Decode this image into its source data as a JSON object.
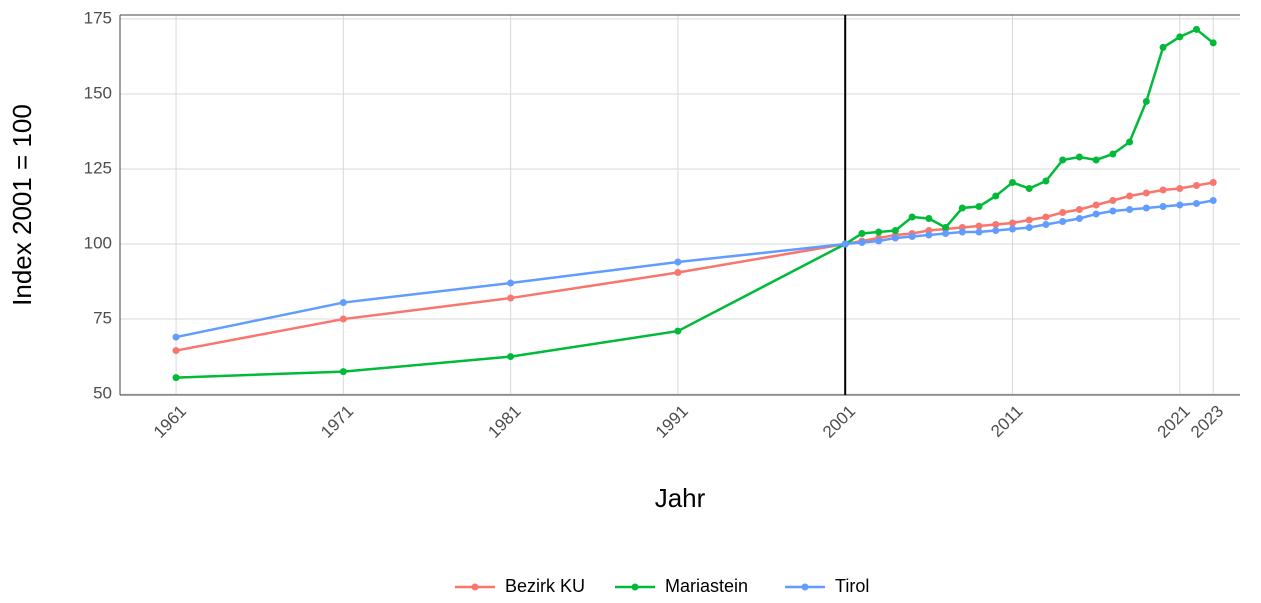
{
  "chart_data": {
    "type": "line",
    "x_label": "Jahr",
    "y_label": "Index 2001 = 100",
    "x": [
      1961,
      1971,
      1981,
      1991,
      2001,
      2002,
      2003,
      2004,
      2005,
      2006,
      2007,
      2008,
      2009,
      2010,
      2011,
      2012,
      2013,
      2014,
      2015,
      2016,
      2017,
      2018,
      2019,
      2020,
      2021,
      2022,
      2023
    ],
    "series": [
      {
        "name": "Bezirk KU",
        "color": "#F8766D",
        "values": [
          64.5,
          75,
          82,
          90.5,
          100,
          101,
          102,
          103,
          103.5,
          104.5,
          105,
          105.5,
          106,
          106.5,
          107,
          108,
          109,
          110.5,
          111.5,
          113,
          114.5,
          116,
          117,
          118,
          118.5,
          119.5,
          120.5
        ]
      },
      {
        "name": "Mariastein",
        "color": "#00BA38",
        "values": [
          55.5,
          57.5,
          62.5,
          71,
          100,
          103.5,
          104,
          104.5,
          109,
          108.5,
          105.5,
          112,
          112.5,
          116,
          120.5,
          118.5,
          121,
          128,
          129,
          128,
          130,
          134,
          147.5,
          165.5,
          169,
          171.5,
          167
        ]
      },
      {
        "name": "Tirol",
        "color": "#619CFF",
        "values": [
          69,
          80.5,
          87,
          94,
          100,
          100.5,
          101,
          102,
          102.5,
          103,
          103.5,
          104,
          104,
          104.5,
          105,
          105.5,
          106.5,
          107.5,
          108.5,
          110,
          111,
          111.5,
          112,
          112.5,
          113,
          113.5,
          114.5
        ]
      }
    ],
    "xlim": [
      1957.65,
      2024.6
    ],
    "ylim": [
      49.7,
      176.3
    ],
    "xticks": [
      1961,
      1971,
      1981,
      1991,
      2001,
      2011,
      2021,
      2023
    ],
    "yticks": [
      50,
      75,
      100,
      125,
      150,
      175
    ],
    "vline": 2001,
    "grid": true,
    "legend": "bottom"
  }
}
